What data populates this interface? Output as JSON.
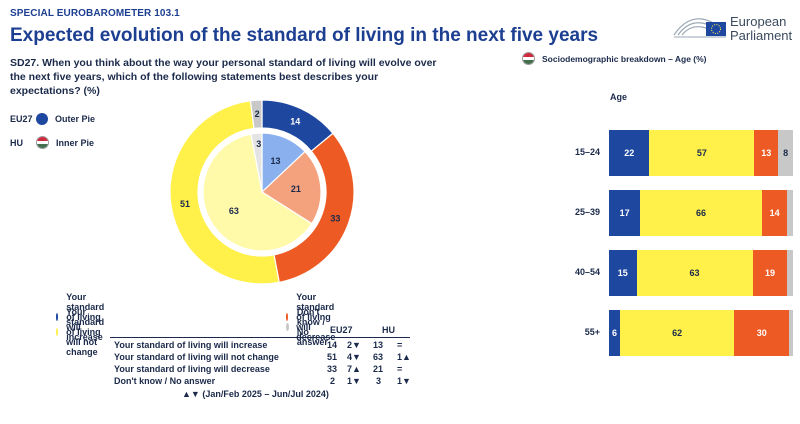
{
  "header": {
    "kicker": "SPECIAL EUROBAROMETER 103.1",
    "title": "Expected evolution of the standard of living in the next five years",
    "question": "SD27. When you think about the way your personal standard of living will evolve over the next five years, which of the following statements best describes your expectations? (%)",
    "logo_line1": "European",
    "logo_line2": "Parliament"
  },
  "pie_legend": {
    "outer_code": "EU27",
    "outer_label": "Outer Pie",
    "inner_code": "HU",
    "inner_label": "Inner Pie"
  },
  "colors": {
    "increase": "#1e48a0",
    "not_change": "#fff04a",
    "decrease": "#ee5a23",
    "dont_know": "#c8c8c8",
    "increase_light": "#8ab0ee",
    "not_change_light": "#fff9aa",
    "decrease_light": "#f4a27e",
    "dont_know_light": "#e4e4e4"
  },
  "categories": [
    {
      "key": "increase",
      "label": "Your standard of living will increase"
    },
    {
      "key": "decrease",
      "label": "Your standard of living will decrease"
    },
    {
      "key": "not_change",
      "label": "Your standard of living will not change"
    },
    {
      "key": "dont_know",
      "label": "Don't know / No answer"
    }
  ],
  "table": {
    "col_eu": "EU27",
    "col_hu": "HU",
    "rows": [
      {
        "label": "Your standard of living will increase",
        "eu": "14",
        "eu_change": "2▼",
        "hu": "13",
        "hu_change": "="
      },
      {
        "label": "Your standard of living will not change",
        "eu": "51",
        "eu_change": "4▼",
        "hu": "63",
        "hu_change": "1▲"
      },
      {
        "label": "Your standard of living will decrease",
        "eu": "33",
        "eu_change": "7▲",
        "hu": "21",
        "hu_change": "="
      },
      {
        "label": "Don't know / No answer",
        "eu": "2",
        "eu_change": "1▼",
        "hu": "3",
        "hu_change": "1▼"
      }
    ],
    "note": "▲▼ (Jan/Feb 2025 – Jun/Jul 2024)"
  },
  "breakdown": {
    "title": "Sociodemographic breakdown – Age (%)",
    "axis_title": "Age"
  },
  "chart_data": [
    {
      "type": "pie",
      "name": "EU27",
      "ring": "outer",
      "categories": [
        "Your standard of living will increase",
        "Your standard of living will decrease",
        "Your standard of living will not change",
        "Don't know / No answer"
      ],
      "values": [
        14,
        33,
        51,
        2
      ]
    },
    {
      "type": "pie",
      "name": "HU",
      "ring": "inner",
      "categories": [
        "Your standard of living will increase",
        "Your standard of living will decrease",
        "Your standard of living will not change",
        "Don't know / No answer"
      ],
      "values": [
        13,
        21,
        63,
        3
      ]
    },
    {
      "type": "bar",
      "orientation": "horizontal",
      "stacked": true,
      "categories": [
        "15–24",
        "25–39",
        "40–54",
        "55+"
      ],
      "series": [
        {
          "key": "increase",
          "values": [
            22,
            17,
            15,
            6
          ]
        },
        {
          "key": "not_change",
          "values": [
            57,
            66,
            63,
            62
          ]
        },
        {
          "key": "decrease",
          "values": [
            13,
            14,
            19,
            30
          ]
        },
        {
          "key": "dont_know",
          "values": [
            8,
            3,
            3,
            2
          ]
        }
      ]
    }
  ]
}
